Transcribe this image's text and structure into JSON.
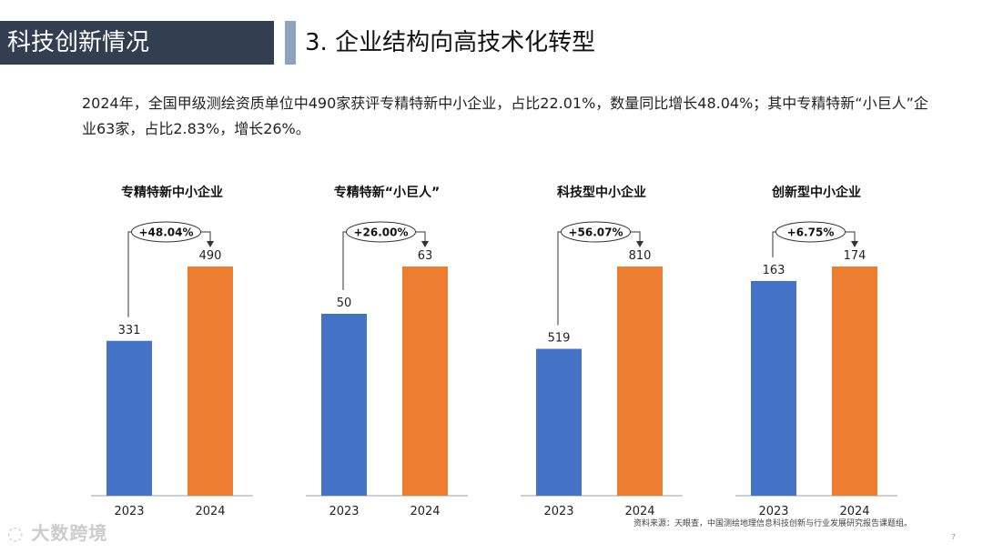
{
  "header": {
    "section": "科技创新情况",
    "title": "3. 企业结构向高技术化转型"
  },
  "summary": "2024年，全国甲级测绘资质单位中490家获评专精特新中小企业，占比22.01%，数量同比增长48.04%；其中专精特新“小巨人”企业63家，占比2.83%，增长26%。",
  "colors": {
    "y2023": "#4472c4",
    "y2024": "#ed7d31",
    "header_bg": "#333f50",
    "accent_bar": "#8ea3be"
  },
  "chart_data": [
    {
      "type": "bar",
      "title": "专精特新中小企业",
      "categories": [
        "2023",
        "2024"
      ],
      "values": [
        331,
        490
      ],
      "growth_label": "+48.04%"
    },
    {
      "type": "bar",
      "title": "专精特新“小巨人”",
      "categories": [
        "2023",
        "2024"
      ],
      "values": [
        50,
        63
      ],
      "growth_label": "+26.00%"
    },
    {
      "type": "bar",
      "title": "科技型中小企业",
      "categories": [
        "2023",
        "2024"
      ],
      "values": [
        519,
        810
      ],
      "growth_label": "+56.07%"
    },
    {
      "type": "bar",
      "title": "创新型中小企业",
      "categories": [
        "2023",
        "2024"
      ],
      "values": [
        163,
        174
      ],
      "growth_label": "+6.75%"
    }
  ],
  "footer": {
    "source": "资料来源：天眼查，中国测绘地理信息科技创新与行业发展研究报告课题组。",
    "page_number": "7",
    "watermark": "大数跨境"
  }
}
